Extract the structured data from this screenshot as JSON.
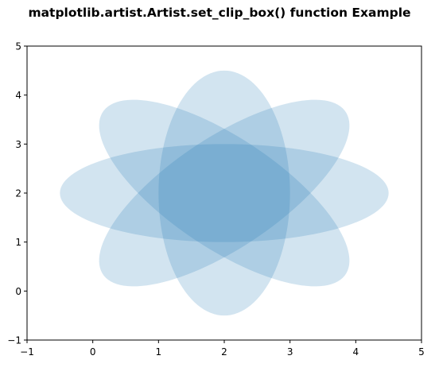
{
  "chart_data": {
    "type": "ellipse-patches",
    "title": "matplotlib.artist.Artist.set_clip_box() function Example",
    "xlabel": "",
    "ylabel": "",
    "xlim": [
      -1,
      5
    ],
    "ylim": [
      -1,
      5
    ],
    "xticks": [
      "−1",
      "0",
      "1",
      "2",
      "3",
      "4",
      "5"
    ],
    "yticks": [
      "−1",
      "0",
      "1",
      "2",
      "3",
      "4",
      "5"
    ],
    "xtick_values": [
      -1,
      0,
      1,
      2,
      3,
      4,
      5
    ],
    "ytick_values": [
      -1,
      0,
      1,
      2,
      3,
      4,
      5
    ],
    "grid": false,
    "legend": "none",
    "fill_color": "#1f77b4",
    "alpha": 0.2,
    "ellipses": [
      {
        "center": [
          2,
          2
        ],
        "width": 5,
        "height": 2,
        "angle": 0
      },
      {
        "center": [
          2,
          2
        ],
        "width": 5,
        "height": 2,
        "angle": 45
      },
      {
        "center": [
          2,
          2
        ],
        "width": 5,
        "height": 2,
        "angle": 90
      },
      {
        "center": [
          2,
          2
        ],
        "width": 5,
        "height": 2,
        "angle": 135
      }
    ]
  }
}
